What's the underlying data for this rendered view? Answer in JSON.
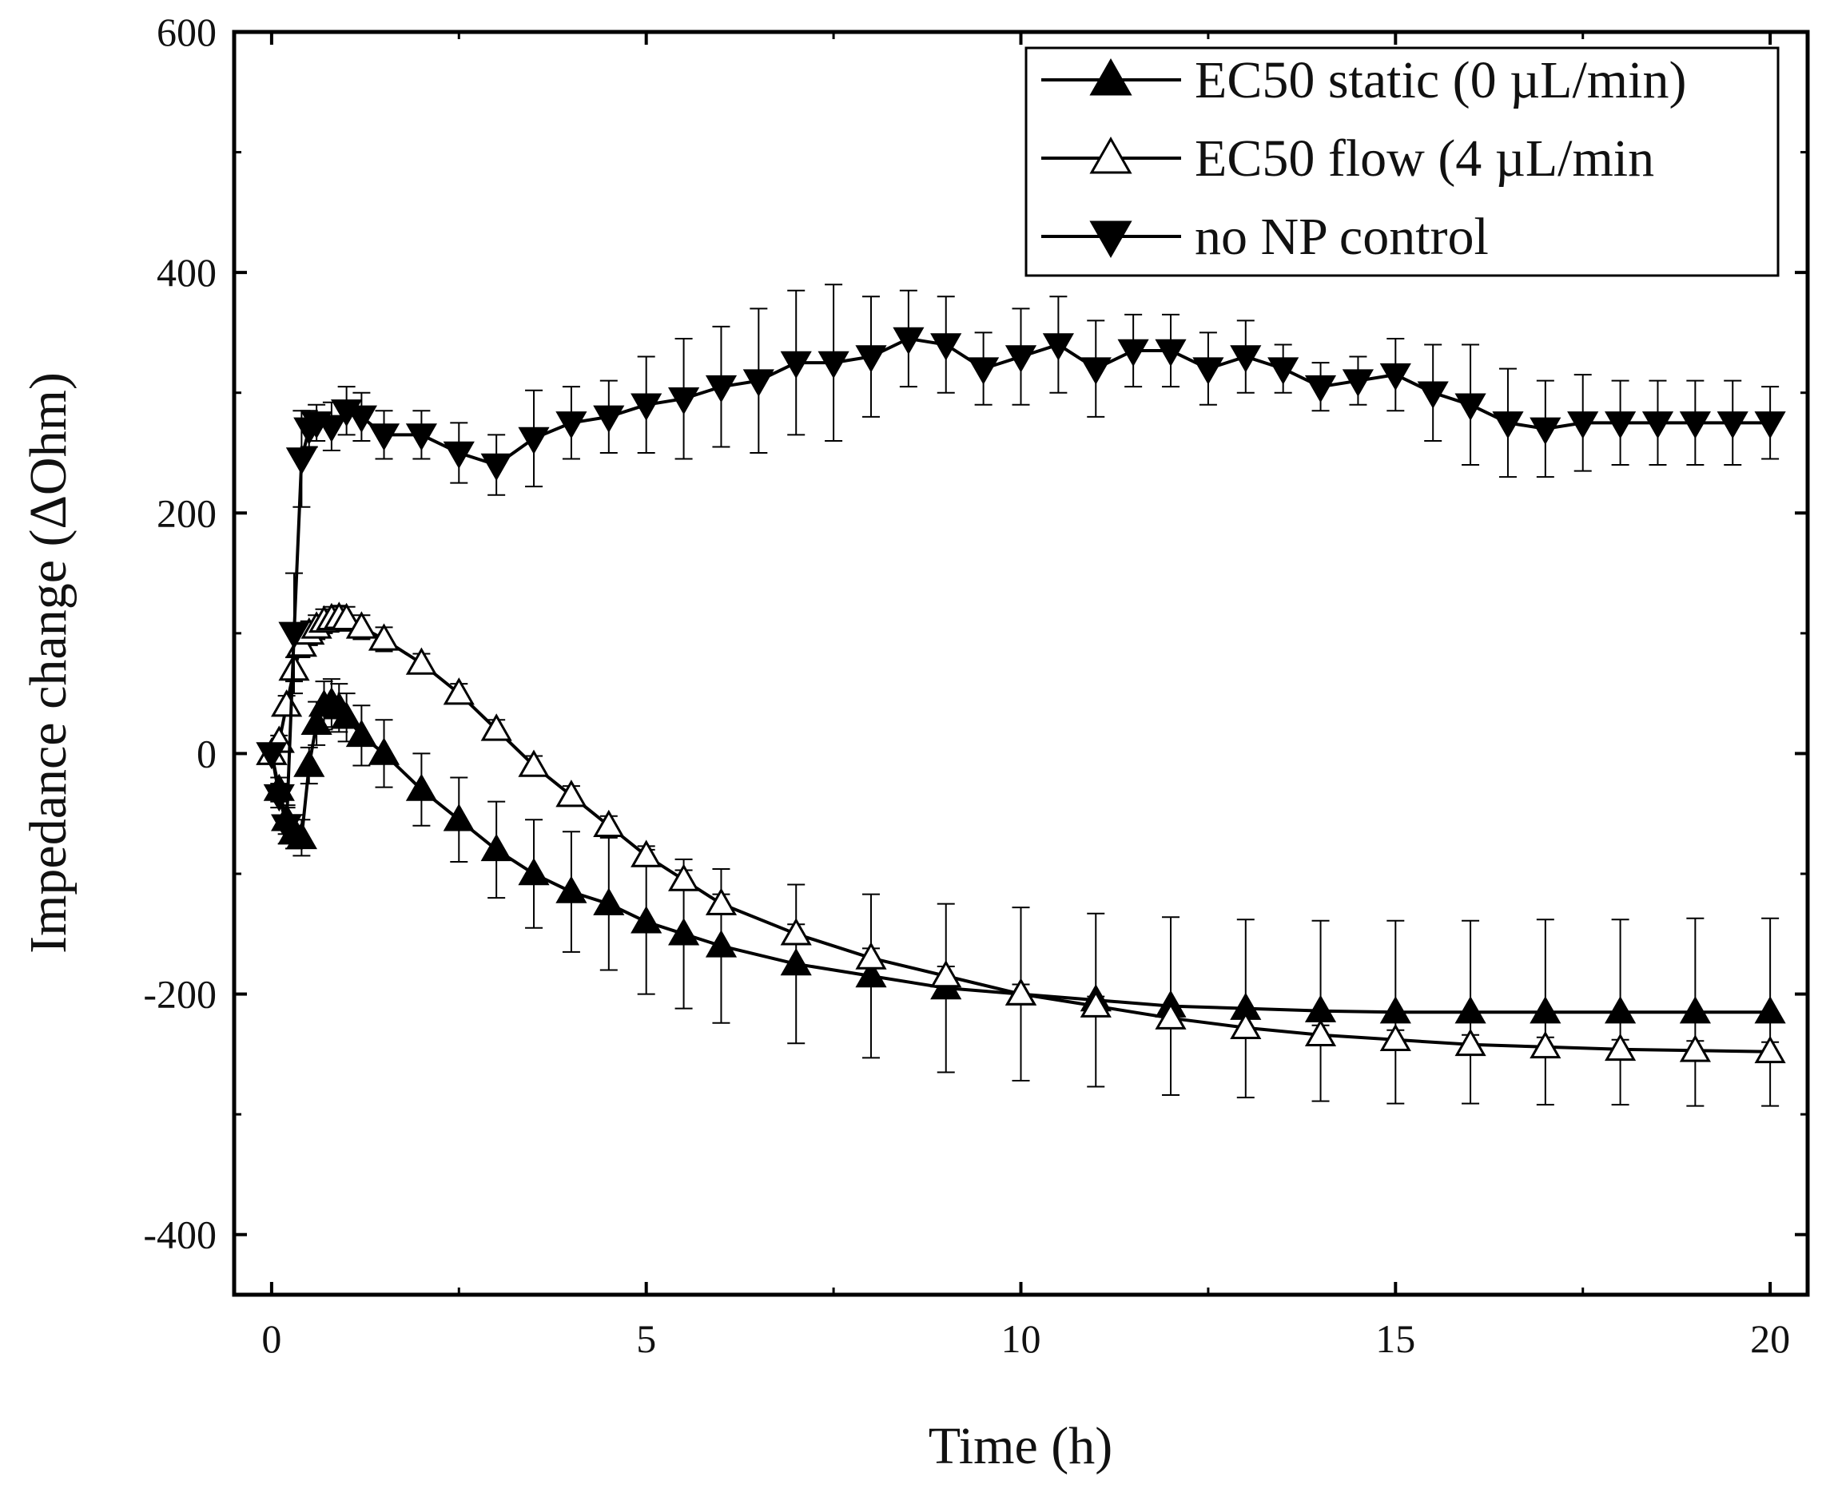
{
  "chart_data": {
    "type": "line",
    "title": "",
    "xlabel": "Time (h)",
    "ylabel": "Impedance change (ΔOhm)",
    "xlim": [
      -0.5,
      20.5
    ],
    "ylim": [
      -450,
      600
    ],
    "xticks": [
      0,
      5,
      10,
      15,
      20
    ],
    "yticks": [
      -400,
      -200,
      0,
      200,
      400,
      600
    ],
    "xtick_labels": [
      "0",
      "5",
      "10",
      "15",
      "20"
    ],
    "ytick_labels": [
      "-400",
      "-200",
      "0",
      "200",
      "400",
      "600"
    ],
    "legend_position": "top-right",
    "grid": false,
    "series": [
      {
        "name": "EC50 static (0 µL/min)",
        "marker": "filled-triangle-up",
        "color": "#000000",
        "x": [
          0,
          0.1,
          0.2,
          0.3,
          0.4,
          0.5,
          0.6,
          0.7,
          0.8,
          0.9,
          1,
          1.2,
          1.5,
          2,
          2.5,
          3,
          3.5,
          4,
          4.5,
          5,
          5.5,
          6,
          7,
          8,
          9,
          10,
          11,
          12,
          13,
          14,
          15,
          16,
          17,
          18,
          19,
          20
        ],
        "y": [
          0,
          -30,
          -55,
          -65,
          -70,
          -10,
          25,
          40,
          42,
          38,
          30,
          15,
          0,
          -30,
          -55,
          -80,
          -100,
          -115,
          -125,
          -140,
          -150,
          -160,
          -175,
          -185,
          -195,
          -200,
          -205,
          -210,
          -212,
          -214,
          -215,
          -215,
          -215,
          -215,
          -215,
          -215
        ],
        "err": [
          0,
          10,
          12,
          14,
          15,
          15,
          18,
          20,
          20,
          20,
          20,
          25,
          28,
          30,
          35,
          40,
          45,
          50,
          55,
          60,
          62,
          64,
          66,
          68,
          70,
          72,
          72,
          74,
          74,
          75,
          76,
          76,
          77,
          77,
          78,
          78
        ]
      },
      {
        "name": "EC50 flow (4 µL/min",
        "marker": "open-triangle-up",
        "color": "#000000",
        "x": [
          0,
          0.1,
          0.2,
          0.3,
          0.4,
          0.5,
          0.6,
          0.7,
          0.8,
          0.9,
          1,
          1.2,
          1.5,
          2,
          2.5,
          3,
          3.5,
          4,
          4.5,
          5,
          5.5,
          6,
          7,
          8,
          9,
          10,
          11,
          12,
          13,
          14,
          15,
          16,
          17,
          18,
          19,
          20
        ],
        "y": [
          0,
          10,
          40,
          70,
          90,
          100,
          105,
          110,
          112,
          113,
          112,
          105,
          95,
          75,
          50,
          20,
          -10,
          -35,
          -60,
          -85,
          -105,
          -125,
          -150,
          -170,
          -185,
          -200,
          -210,
          -220,
          -228,
          -234,
          -238,
          -242,
          -244,
          -246,
          -247,
          -248
        ],
        "err": [
          0,
          5,
          8,
          10,
          10,
          10,
          10,
          10,
          10,
          10,
          10,
          10,
          10,
          8,
          8,
          8,
          8,
          8,
          8,
          8,
          8,
          8,
          8,
          8,
          8,
          8,
          8,
          8,
          8,
          8,
          8,
          8,
          8,
          8,
          8,
          8
        ]
      },
      {
        "name": "no NP control",
        "marker": "filled-triangle-down",
        "color": "#000000",
        "x": [
          0,
          0.1,
          0.2,
          0.3,
          0.4,
          0.5,
          0.6,
          0.8,
          1,
          1.2,
          1.5,
          2,
          2.5,
          3,
          3.5,
          4,
          4.5,
          5,
          5.5,
          6,
          6.5,
          7,
          7.5,
          8,
          8.5,
          9,
          9.5,
          10,
          10.5,
          11,
          11.5,
          12,
          12.5,
          13,
          13.5,
          14,
          14.5,
          15,
          15.5,
          16,
          16.5,
          17,
          17.5,
          18,
          18.5,
          19,
          19.5,
          20
        ],
        "y": [
          0,
          -35,
          -60,
          100,
          245,
          270,
          275,
          272,
          285,
          280,
          265,
          265,
          250,
          240,
          262,
          275,
          280,
          290,
          295,
          305,
          310,
          325,
          325,
          330,
          345,
          340,
          320,
          330,
          340,
          320,
          335,
          335,
          320,
          330,
          320,
          305,
          310,
          315,
          300,
          290,
          275,
          270,
          275,
          275,
          275,
          275,
          275,
          275
        ],
        "err": [
          0,
          10,
          15,
          50,
          40,
          15,
          15,
          20,
          20,
          20,
          20,
          20,
          25,
          25,
          40,
          30,
          30,
          40,
          50,
          50,
          60,
          60,
          65,
          50,
          40,
          40,
          30,
          40,
          40,
          40,
          30,
          30,
          30,
          30,
          20,
          20,
          20,
          30,
          40,
          50,
          45,
          40,
          40,
          35,
          35,
          35,
          35,
          30
        ]
      }
    ]
  }
}
